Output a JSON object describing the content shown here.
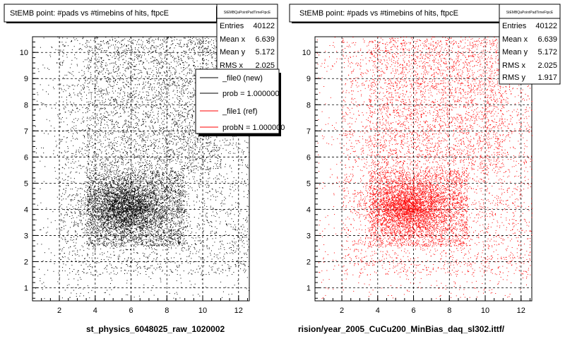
{
  "left_panel": {
    "title": "StEMB point: #pads vs #timebins of hits, ftpcE",
    "xlabel": "st_physics_6048025_raw_1020002",
    "stats": {
      "header": "StEMBQaPointPadTimeFtpcE",
      "rows": [
        {
          "label": "Entries",
          "value": "40122"
        },
        {
          "label": "Mean x",
          "value": "6.639"
        },
        {
          "label": "Mean y",
          "value": "5.172"
        },
        {
          "label": "RMS x",
          "value": "2.025"
        }
      ]
    },
    "legend": [
      {
        "label": "_file0 (new)",
        "color": "#000000"
      },
      {
        "label": "prob = 1.000000",
        "color": "#000000"
      },
      {
        "label": "_file1 (ref)",
        "color": "#ff0000"
      },
      {
        "label": "probN = 1.000000",
        "color": "#ff0000"
      }
    ]
  },
  "right_panel": {
    "title": "StEMB point: #pads vs #timebins of hits, ftpcE",
    "xlabel": "rision/year_2005_CuCu200_MinBias_daq_sl302.ittf/",
    "stats": {
      "header": "StEMBQaPointPadTimeFtpcE",
      "rows": [
        {
          "label": "Entries",
          "value": "40122"
        },
        {
          "label": "Mean x",
          "value": "6.639"
        },
        {
          "label": "Mean y",
          "value": "5.172"
        },
        {
          "label": "RMS x",
          "value": "2.025"
        },
        {
          "label": "RMS y",
          "value": "1.917"
        }
      ]
    }
  },
  "colors": {
    "left_points": "#000000",
    "right_points": "#ff0000"
  },
  "chart_data": [
    {
      "type": "scatter",
      "title": "StEMB point: #pads vs #timebins of hits, ftpcE",
      "xlabel": "st_physics_6048025_raw_1020002",
      "xlim": [
        0.5,
        12.6
      ],
      "ylim": [
        0.5,
        10.6
      ],
      "xticks": [
        "2",
        "4",
        "6",
        "8",
        "10",
        "12"
      ],
      "yticks": [
        "1",
        "2",
        "3",
        "4",
        "5",
        "6",
        "7",
        "8",
        "9",
        "10"
      ],
      "grid": true,
      "entries": 40122,
      "mean_x": 6.639,
      "mean_y": 5.172,
      "rms_x": 2.025,
      "legend_position": "top-right",
      "series": [
        {
          "name": "_file0 (new)",
          "color": "#000000"
        }
      ]
    },
    {
      "type": "scatter",
      "title": "StEMB point: #pads vs #timebins of hits, ftpcE",
      "xlabel": "rision/year_2005_CuCu200_MinBias_daq_sl302.ittf/",
      "xlim": [
        0.5,
        12.6
      ],
      "ylim": [
        0.5,
        10.6
      ],
      "xticks": [
        "2",
        "4",
        "6",
        "8",
        "10",
        "12"
      ],
      "yticks": [
        "1",
        "2",
        "3",
        "4",
        "5",
        "6",
        "7",
        "8",
        "9",
        "10"
      ],
      "grid": true,
      "entries": 40122,
      "mean_x": 6.639,
      "mean_y": 5.172,
      "rms_x": 2.025,
      "rms_y": 1.917,
      "series": [
        {
          "name": "_file1 (ref)",
          "color": "#ff0000"
        }
      ]
    }
  ]
}
